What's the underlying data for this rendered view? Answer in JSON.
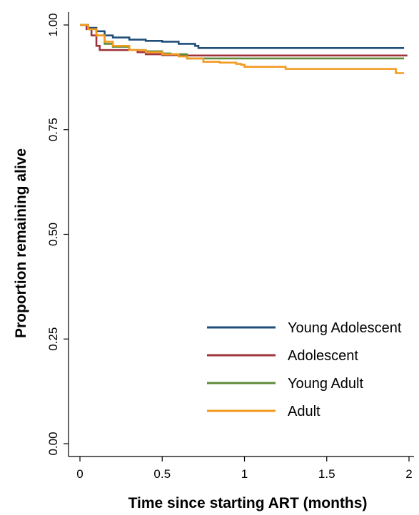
{
  "chart_data": {
    "type": "line",
    "title": "",
    "xlabel": "Time since starting ART (months)",
    "ylabel": "Proportion remaining alive",
    "xlim": [
      0,
      2
    ],
    "ylim": [
      0,
      1
    ],
    "x_ticks": [
      0,
      0.5,
      1,
      1.5,
      2
    ],
    "x_tick_labels": [
      "0",
      "0.5",
      "1",
      "1.5",
      "2"
    ],
    "y_ticks": [
      0,
      0.25,
      0.5,
      0.75,
      1
    ],
    "y_tick_labels": [
      "0.00",
      "0.25",
      "0.50",
      "0.75",
      "1.00"
    ],
    "grid": false,
    "legend_position": "bottom-right",
    "series": [
      {
        "name": "Young Adolescent",
        "color": "#1f4e79",
        "points": [
          [
            0,
            1.0
          ],
          [
            0.05,
            0.993
          ],
          [
            0.1,
            0.985
          ],
          [
            0.15,
            0.975
          ],
          [
            0.2,
            0.97
          ],
          [
            0.3,
            0.965
          ],
          [
            0.4,
            0.962
          ],
          [
            0.5,
            0.96
          ],
          [
            0.6,
            0.955
          ],
          [
            0.7,
            0.95
          ],
          [
            0.72,
            0.945
          ],
          [
            1.97,
            0.945
          ]
        ]
      },
      {
        "name": "Adolescent",
        "color": "#a0343c",
        "points": [
          [
            0,
            1.0
          ],
          [
            0.04,
            0.99
          ],
          [
            0.07,
            0.975
          ],
          [
            0.1,
            0.95
          ],
          [
            0.12,
            0.94
          ],
          [
            0.3,
            0.94
          ],
          [
            0.35,
            0.935
          ],
          [
            0.4,
            0.93
          ],
          [
            0.5,
            0.928
          ],
          [
            0.6,
            0.927
          ],
          [
            1.99,
            0.927
          ]
        ]
      },
      {
        "name": "Young Adult",
        "color": "#5b8a3a",
        "points": [
          [
            0,
            1.0
          ],
          [
            0.05,
            0.99
          ],
          [
            0.1,
            0.975
          ],
          [
            0.15,
            0.955
          ],
          [
            0.2,
            0.948
          ],
          [
            0.3,
            0.94
          ],
          [
            0.4,
            0.937
          ],
          [
            0.5,
            0.932
          ],
          [
            0.55,
            0.93
          ],
          [
            0.65,
            0.92
          ],
          [
            1.97,
            0.92
          ]
        ]
      },
      {
        "name": "Adult",
        "color": "#f39a1e",
        "points": [
          [
            0,
            1.0
          ],
          [
            0.05,
            0.99
          ],
          [
            0.1,
            0.975
          ],
          [
            0.15,
            0.96
          ],
          [
            0.2,
            0.95
          ],
          [
            0.3,
            0.94
          ],
          [
            0.4,
            0.935
          ],
          [
            0.5,
            0.93
          ],
          [
            0.6,
            0.925
          ],
          [
            0.65,
            0.92
          ],
          [
            0.75,
            0.912
          ],
          [
            0.85,
            0.91
          ],
          [
            0.95,
            0.907
          ],
          [
            0.98,
            0.905
          ],
          [
            1.0,
            0.9
          ],
          [
            1.2,
            0.9
          ],
          [
            1.25,
            0.895
          ],
          [
            1.9,
            0.895
          ],
          [
            1.92,
            0.885
          ],
          [
            1.97,
            0.885
          ]
        ]
      }
    ]
  }
}
